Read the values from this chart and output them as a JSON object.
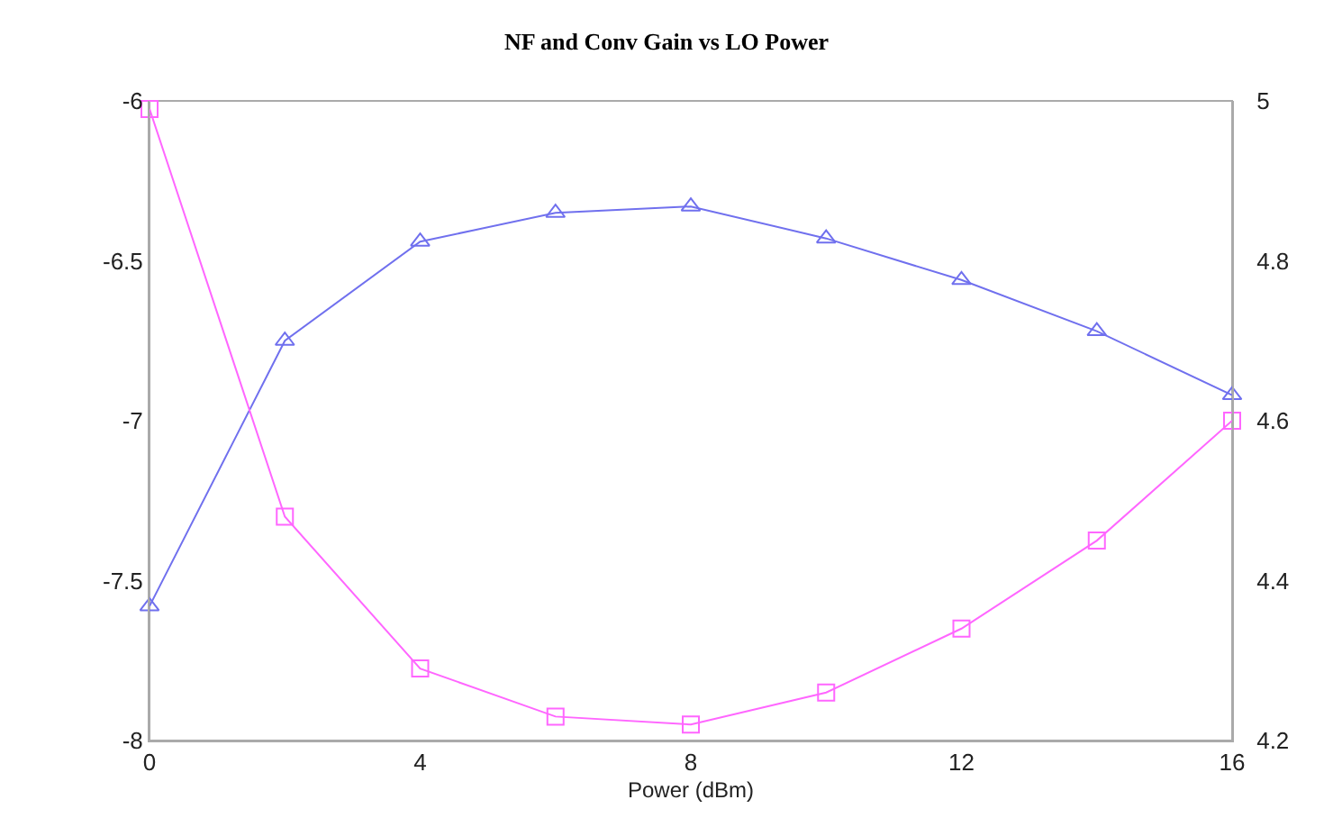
{
  "chart_data": {
    "type": "line",
    "title": "NF and Conv Gain vs LO Power",
    "xlabel": "Power (dBm)",
    "x": [
      0,
      2,
      4,
      6,
      8,
      10,
      12,
      14,
      16
    ],
    "series": [
      {
        "color": "#7070ee",
        "marker": "triangle",
        "values": [
          -7.58,
          -6.75,
          -6.44,
          -6.35,
          -6.33,
          -6.43,
          -6.56,
          -6.72,
          -6.92
        ]
      },
      {
        "color": "#ff66ff",
        "marker": "square",
        "axis": "y2",
        "values": [
          4.99,
          4.48,
          4.29,
          4.23,
          4.22,
          4.26,
          4.34,
          4.45,
          4.6
        ]
      }
    ],
    "xlim": [
      0,
      16
    ],
    "xticks": [
      0,
      4,
      8,
      12,
      16
    ],
    "ylim": [
      -8,
      -6
    ],
    "yticks": [
      -6,
      -6.5,
      -7,
      -7.5,
      -8
    ],
    "y2lim": [
      4.2,
      5
    ],
    "y2ticks": [
      4.2,
      4.4,
      4.6,
      4.8,
      5
    ],
    "grid": false,
    "line_style": "solid"
  }
}
